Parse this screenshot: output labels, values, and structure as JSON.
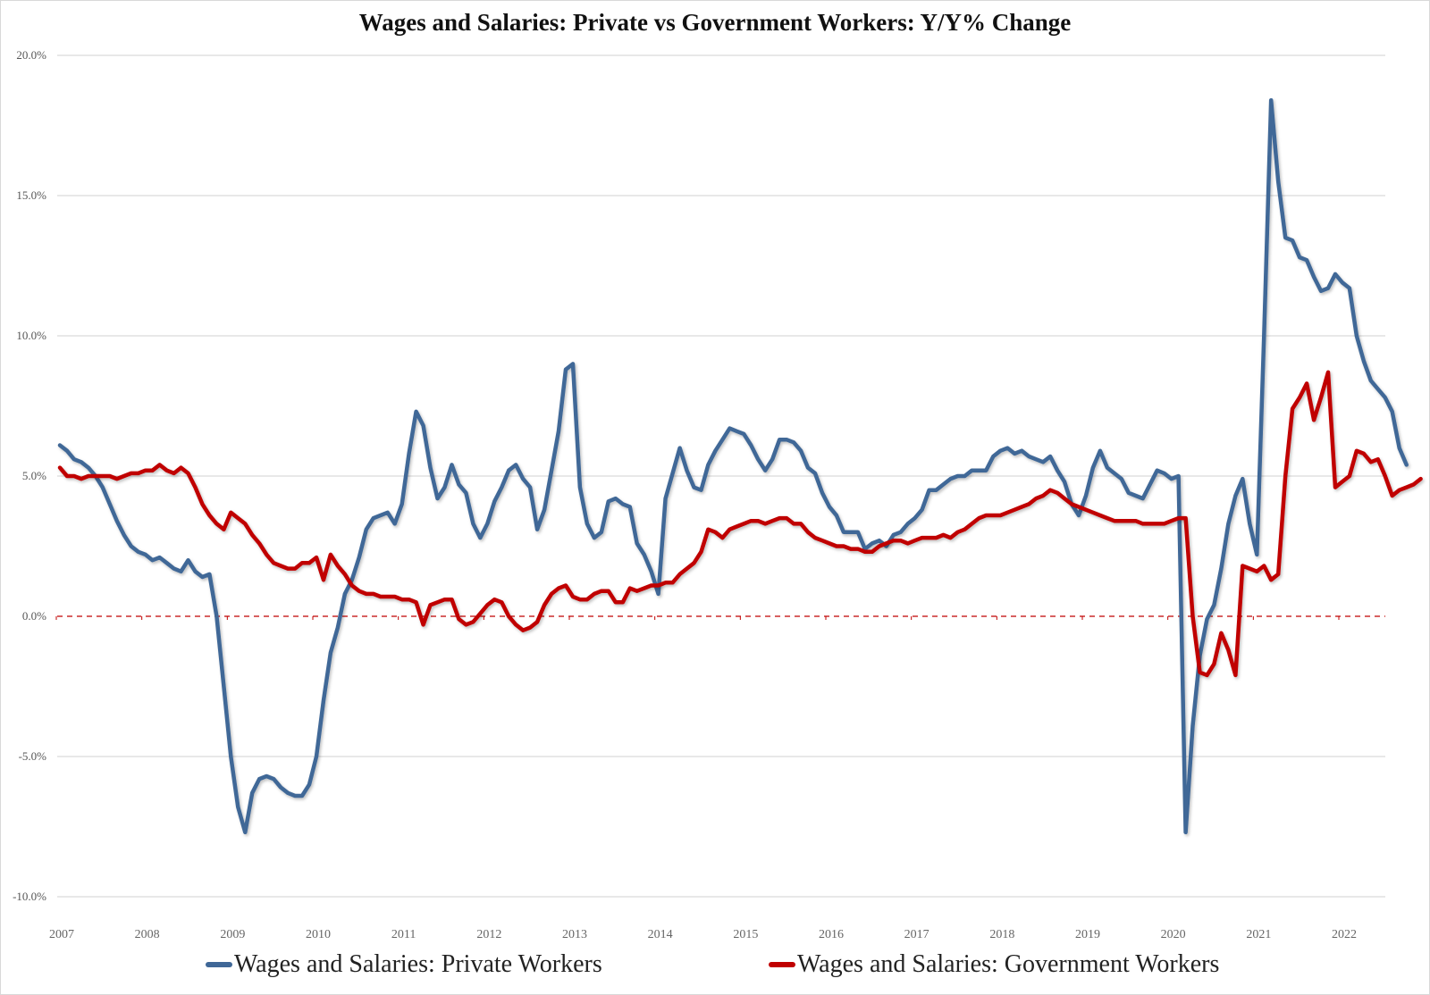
{
  "chart_data": {
    "type": "line",
    "title": "Wages and Salaries: Private vs Government Workers: Y/Y% Change",
    "xlabel": "",
    "ylabel": "",
    "ylim": [
      -10,
      20
    ],
    "xlim": [
      2007.0,
      2022.45
    ],
    "grid": true,
    "legend_position": "bottom",
    "y_ticks": [
      "-10.0%",
      "-5.0%",
      "0.0%",
      "5.0%",
      "10.0%",
      "15.0%",
      "20.0%"
    ],
    "y_tick_values": [
      -10,
      -5,
      0,
      5,
      10,
      15,
      20
    ],
    "x_ticks": [
      "2007",
      "2008",
      "2009",
      "2010",
      "2011",
      "2012",
      "2013",
      "2014",
      "2015",
      "2016",
      "2017",
      "2018",
      "2019",
      "2020",
      "2021",
      "2022"
    ],
    "reference_line": {
      "value": 0,
      "style": "dashed",
      "color": "#c00000"
    },
    "x_start": 2007.0,
    "x_step": 0.08333,
    "series": [
      {
        "name": "Wages and Salaries: Private Workers",
        "color": "#3f6797",
        "values": [
          6.1,
          5.9,
          5.6,
          5.5,
          5.3,
          5.0,
          4.6,
          4.0,
          3.4,
          2.9,
          2.5,
          2.3,
          2.2,
          2.0,
          2.1,
          1.9,
          1.7,
          1.6,
          2.0,
          1.6,
          1.4,
          1.5,
          0.0,
          -2.5,
          -5.0,
          -6.8,
          -7.7,
          -6.3,
          -5.8,
          -5.7,
          -5.8,
          -6.1,
          -6.3,
          -6.4,
          -6.4,
          -6.0,
          -5.0,
          -3.0,
          -1.3,
          -0.4,
          0.8,
          1.3,
          2.1,
          3.1,
          3.5,
          3.6,
          3.7,
          3.3,
          4.0,
          5.8,
          7.3,
          6.8,
          5.3,
          4.2,
          4.6,
          5.4,
          4.7,
          4.4,
          3.3,
          2.8,
          3.3,
          4.1,
          4.6,
          5.2,
          5.4,
          4.9,
          4.6,
          3.1,
          3.8,
          5.2,
          6.6,
          8.8,
          9.0,
          4.6,
          3.3,
          2.8,
          3.0,
          4.1,
          4.2,
          4.0,
          3.9,
          2.6,
          2.2,
          1.6,
          0.8,
          4.2,
          5.1,
          6.0,
          5.2,
          4.6,
          4.5,
          5.4,
          5.9,
          6.3,
          6.7,
          6.6,
          6.5,
          6.1,
          5.6,
          5.2,
          5.6,
          6.3,
          6.3,
          6.2,
          5.9,
          5.3,
          5.1,
          4.4,
          3.9,
          3.6,
          3.0,
          3.0,
          3.0,
          2.4,
          2.6,
          2.7,
          2.5,
          2.9,
          3.0,
          3.3,
          3.5,
          3.8,
          4.5,
          4.5,
          4.7,
          4.9,
          5.0,
          5.0,
          5.2,
          5.2,
          5.2,
          5.7,
          5.9,
          6.0,
          5.8,
          5.9,
          5.7,
          5.6,
          5.5,
          5.7,
          5.2,
          4.8,
          4.0,
          3.6,
          4.3,
          5.3,
          5.9,
          5.3,
          5.1,
          4.9,
          4.4,
          4.3,
          4.2,
          4.7,
          5.2,
          5.1,
          4.9,
          5.0,
          -7.7,
          -3.9,
          -1.4,
          -0.1,
          0.4,
          1.7,
          3.3,
          4.3,
          4.9,
          3.3,
          2.2,
          10.0,
          18.4,
          15.5,
          13.5,
          13.4,
          12.8,
          12.7,
          12.1,
          11.6,
          11.7,
          12.2,
          11.9,
          11.7,
          10.0,
          9.1,
          8.4,
          8.1,
          7.8,
          7.3,
          6.0,
          5.4
        ]
      },
      {
        "name": "Wages and Salaries: Government Workers",
        "color": "#c00000",
        "values": [
          5.3,
          5.0,
          5.0,
          4.9,
          5.0,
          5.0,
          5.0,
          5.0,
          4.9,
          5.0,
          5.1,
          5.1,
          5.2,
          5.2,
          5.4,
          5.2,
          5.1,
          5.3,
          5.1,
          4.6,
          4.0,
          3.6,
          3.3,
          3.1,
          3.7,
          3.5,
          3.3,
          2.9,
          2.6,
          2.2,
          1.9,
          1.8,
          1.7,
          1.7,
          1.9,
          1.9,
          2.1,
          1.3,
          2.2,
          1.8,
          1.5,
          1.1,
          0.9,
          0.8,
          0.8,
          0.7,
          0.7,
          0.7,
          0.6,
          0.6,
          0.5,
          -0.3,
          0.4,
          0.5,
          0.6,
          0.6,
          -0.1,
          -0.3,
          -0.2,
          0.1,
          0.4,
          0.6,
          0.5,
          0.0,
          -0.3,
          -0.5,
          -0.4,
          -0.2,
          0.4,
          0.8,
          1.0,
          1.1,
          0.7,
          0.6,
          0.6,
          0.8,
          0.9,
          0.9,
          0.5,
          0.5,
          1.0,
          0.9,
          1.0,
          1.1,
          1.1,
          1.2,
          1.2,
          1.5,
          1.7,
          1.9,
          2.3,
          3.1,
          3.0,
          2.8,
          3.1,
          3.2,
          3.3,
          3.4,
          3.4,
          3.3,
          3.4,
          3.5,
          3.5,
          3.3,
          3.3,
          3.0,
          2.8,
          2.7,
          2.6,
          2.5,
          2.5,
          2.4,
          2.4,
          2.3,
          2.3,
          2.5,
          2.6,
          2.7,
          2.7,
          2.6,
          2.7,
          2.8,
          2.8,
          2.8,
          2.9,
          2.8,
          3.0,
          3.1,
          3.3,
          3.5,
          3.6,
          3.6,
          3.6,
          3.7,
          3.8,
          3.9,
          4.0,
          4.2,
          4.3,
          4.5,
          4.4,
          4.2,
          4.0,
          3.9,
          3.8,
          3.7,
          3.6,
          3.5,
          3.4,
          3.4,
          3.4,
          3.4,
          3.3,
          3.3,
          3.3,
          3.3,
          3.4,
          3.5,
          3.5,
          0.0,
          -2.0,
          -2.1,
          -1.7,
          -0.6,
          -1.2,
          -2.1,
          1.8,
          1.7,
          1.6,
          1.8,
          1.3,
          1.5,
          5.0,
          7.4,
          7.8,
          8.3,
          7.0,
          7.8,
          8.7,
          4.6,
          4.8,
          5.0,
          5.9,
          5.8,
          5.5,
          5.6,
          5.0,
          4.3,
          4.5,
          4.6,
          4.7,
          4.9
        ]
      }
    ]
  },
  "legend": {
    "items": [
      {
        "label": "Wages and Salaries: Private Workers",
        "color": "#3f6797"
      },
      {
        "label": "Wages and Salaries: Government Workers",
        "color": "#c00000"
      }
    ]
  }
}
